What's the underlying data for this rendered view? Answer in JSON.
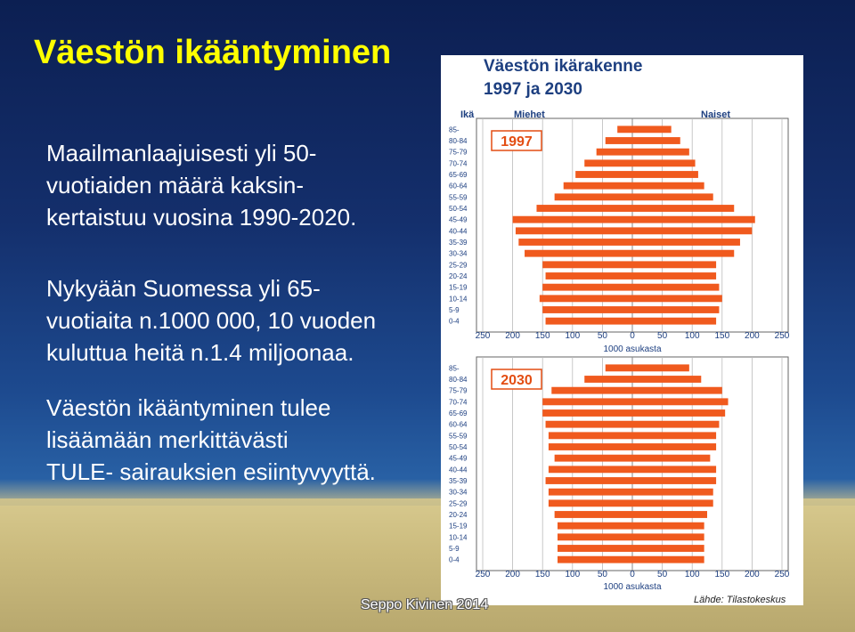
{
  "slide": {
    "title": "Väestön ikääntyminen",
    "paragraphs": [
      [
        "Maailmanlaajuisesti yli 50-",
        "vuotiaiden määrä kaksin-",
        "kertaistuu vuosina 1990-2020."
      ],
      [
        "Nykyään Suomessa yli 65-",
        "vuotiaita n.1000 000, 10 vuoden",
        "kuluttua heitä n.1.4 miljoonaa."
      ],
      [
        "Väestön ikääntyminen tulee",
        "lisäämään merkittävästi",
        "TULE- sairauksien esiintyvyyttä."
      ]
    ],
    "footer": "Seppo Kivinen 2014"
  },
  "chart_data": {
    "type": "bar",
    "orientation": "horizontal-population-pyramid",
    "title": "Väestön ikärakenne",
    "subtitle": "1997 ja 2030",
    "age_axis_label": "Ikä",
    "left_label": "Miehet",
    "right_label": "Naiset",
    "xlabel": "1000 asukasta",
    "source": "Lähde: Tilastokeskus",
    "x_ticks": [
      "250",
      "200",
      "150",
      "100",
      "50",
      "0",
      "50",
      "100",
      "150",
      "200",
      "250"
    ],
    "xlim": [
      -250,
      250
    ],
    "age_groups": [
      "85-",
      "80-84",
      "75-79",
      "70-74",
      "65-69",
      "60-64",
      "55-59",
      "50-54",
      "45-49",
      "40-44",
      "35-39",
      "30-34",
      "25-29",
      "20-24",
      "15-19",
      "10-14",
      "5-9",
      "0-4"
    ],
    "bar_color": "#f05a1e",
    "panels": [
      {
        "year": "1997",
        "series": [
          {
            "name": "Miehet",
            "values": [
              25,
              45,
              60,
              80,
              95,
              115,
              130,
              160,
              200,
              195,
              190,
              180,
              150,
              145,
              150,
              155,
              150,
              145
            ]
          },
          {
            "name": "Naiset",
            "values": [
              65,
              80,
              95,
              105,
              110,
              120,
              135,
              170,
              205,
              200,
              180,
              170,
              140,
              140,
              145,
              150,
              145,
              140
            ]
          }
        ]
      },
      {
        "year": "2030",
        "series": [
          {
            "name": "Miehet",
            "values": [
              45,
              80,
              135,
              150,
              150,
              145,
              140,
              140,
              130,
              140,
              145,
              140,
              140,
              130,
              125,
              125,
              125,
              125
            ]
          },
          {
            "name": "Naiset",
            "values": [
              95,
              115,
              150,
              160,
              155,
              145,
              140,
              140,
              130,
              140,
              140,
              135,
              135,
              125,
              120,
              120,
              120,
              120
            ]
          }
        ]
      }
    ]
  }
}
